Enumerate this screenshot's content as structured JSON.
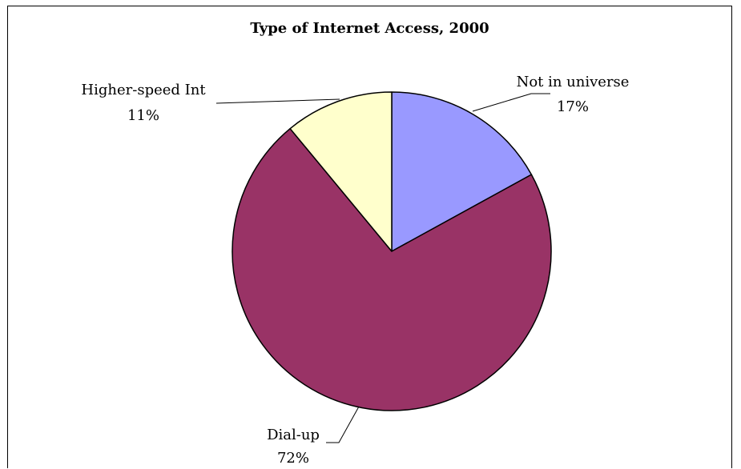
{
  "chart_data": {
    "type": "pie",
    "title": "Type of Internet Access, 2000",
    "slices": [
      {
        "label": "Not in universe",
        "value": 17,
        "display": "17%",
        "color": "#9999ff"
      },
      {
        "label": "Dial-up",
        "value": 72,
        "display": "72%",
        "color": "#993366"
      },
      {
        "label": "Higher-speed Int",
        "value": 11,
        "display": "11%",
        "color": "#ffffcc"
      }
    ],
    "start_angle": "12 o'clock",
    "direction": "clockwise",
    "legend": "none",
    "slice_outline_color": "#000000"
  }
}
